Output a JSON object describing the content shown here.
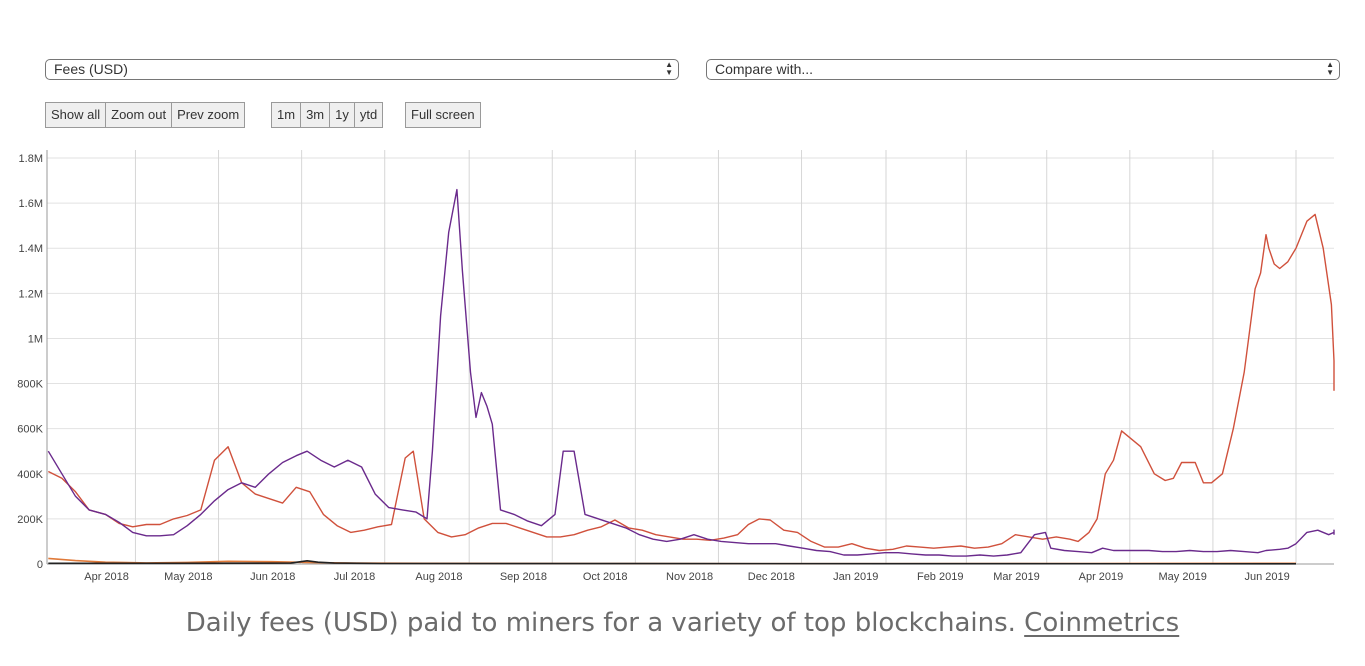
{
  "controls": {
    "metric_select": "Fees (USD)",
    "compare_select": "Compare with...",
    "zoom_buttons": [
      "Show all",
      "Zoom out",
      "Prev zoom"
    ],
    "range_buttons": [
      "1m",
      "3m",
      "1y",
      "ytd"
    ],
    "fullscreen_button": "Full screen"
  },
  "caption": {
    "text": "Daily fees (USD) paid to miners for a variety of top blockchains.",
    "link": "Coinmetrics"
  },
  "chart_data": {
    "type": "line",
    "x_ticks": [
      "Apr 2018",
      "May 2018",
      "Jun 2018",
      "Jul 2018",
      "Aug 2018",
      "Sep 2018",
      "Oct 2018",
      "Nov 2018",
      "Dec 2018",
      "Jan 2019",
      "Feb 2019",
      "Mar 2019",
      "Apr 2019",
      "May 2019",
      "Jun 2019"
    ],
    "xlim": [
      "2018-03-15",
      "2019-06-16"
    ],
    "y_ticks": [
      "0",
      "200K",
      "400K",
      "600K",
      "800K",
      "1M",
      "1.2M",
      "1.4M",
      "1.6M",
      "1.8M"
    ],
    "ylim": [
      0,
      1800000
    ],
    "grid": true,
    "colors": {
      "red": "#d0513c",
      "purple": "#6a2a8c",
      "orange": "#e07a3a",
      "black": "#222222"
    },
    "series": [
      {
        "color": "red",
        "points": [
          [
            "2018-03-15",
            410000
          ],
          [
            "2018-03-20",
            380000
          ],
          [
            "2018-03-25",
            320000
          ],
          [
            "2018-03-30",
            240000
          ],
          [
            "2018-04-05",
            220000
          ],
          [
            "2018-04-10",
            180000
          ],
          [
            "2018-04-15",
            165000
          ],
          [
            "2018-04-20",
            175000
          ],
          [
            "2018-04-25",
            175000
          ],
          [
            "2018-04-30",
            200000
          ],
          [
            "2018-05-05",
            215000
          ],
          [
            "2018-05-10",
            240000
          ],
          [
            "2018-05-15",
            460000
          ],
          [
            "2018-05-20",
            520000
          ],
          [
            "2018-05-25",
            360000
          ],
          [
            "2018-05-30",
            310000
          ],
          [
            "2018-06-04",
            290000
          ],
          [
            "2018-06-09",
            270000
          ],
          [
            "2018-06-14",
            340000
          ],
          [
            "2018-06-19",
            320000
          ],
          [
            "2018-06-24",
            220000
          ],
          [
            "2018-06-29",
            170000
          ],
          [
            "2018-07-04",
            140000
          ],
          [
            "2018-07-09",
            150000
          ],
          [
            "2018-07-14",
            165000
          ],
          [
            "2018-07-19",
            175000
          ],
          [
            "2018-07-24",
            470000
          ],
          [
            "2018-07-27",
            500000
          ],
          [
            "2018-07-31",
            200000
          ],
          [
            "2018-08-05",
            140000
          ],
          [
            "2018-08-10",
            120000
          ],
          [
            "2018-08-15",
            130000
          ],
          [
            "2018-08-20",
            160000
          ],
          [
            "2018-08-25",
            180000
          ],
          [
            "2018-08-30",
            180000
          ],
          [
            "2018-09-04",
            160000
          ],
          [
            "2018-09-09",
            140000
          ],
          [
            "2018-09-14",
            120000
          ],
          [
            "2018-09-19",
            120000
          ],
          [
            "2018-09-24",
            130000
          ],
          [
            "2018-09-29",
            150000
          ],
          [
            "2018-10-04",
            165000
          ],
          [
            "2018-10-09",
            195000
          ],
          [
            "2018-10-14",
            160000
          ],
          [
            "2018-10-19",
            150000
          ],
          [
            "2018-10-24",
            130000
          ],
          [
            "2018-10-29",
            120000
          ],
          [
            "2018-11-03",
            110000
          ],
          [
            "2018-11-08",
            110000
          ],
          [
            "2018-11-13",
            105000
          ],
          [
            "2018-11-18",
            115000
          ],
          [
            "2018-11-23",
            130000
          ],
          [
            "2018-11-27",
            175000
          ],
          [
            "2018-12-01",
            200000
          ],
          [
            "2018-12-05",
            195000
          ],
          [
            "2018-12-10",
            150000
          ],
          [
            "2018-12-15",
            140000
          ],
          [
            "2018-12-20",
            100000
          ],
          [
            "2018-12-25",
            75000
          ],
          [
            "2018-12-30",
            75000
          ],
          [
            "2019-01-04",
            90000
          ],
          [
            "2019-01-09",
            70000
          ],
          [
            "2019-01-14",
            60000
          ],
          [
            "2019-01-19",
            65000
          ],
          [
            "2019-01-24",
            80000
          ],
          [
            "2019-01-29",
            75000
          ],
          [
            "2019-02-03",
            70000
          ],
          [
            "2019-02-08",
            75000
          ],
          [
            "2019-02-13",
            80000
          ],
          [
            "2019-02-18",
            70000
          ],
          [
            "2019-02-23",
            75000
          ],
          [
            "2019-02-28",
            90000
          ],
          [
            "2019-03-05",
            130000
          ],
          [
            "2019-03-10",
            120000
          ],
          [
            "2019-03-15",
            110000
          ],
          [
            "2019-03-20",
            120000
          ],
          [
            "2019-03-25",
            110000
          ],
          [
            "2019-03-28",
            100000
          ],
          [
            "2019-04-01",
            140000
          ],
          [
            "2019-04-04",
            200000
          ],
          [
            "2019-04-07",
            400000
          ],
          [
            "2019-04-10",
            460000
          ],
          [
            "2019-04-13",
            590000
          ],
          [
            "2019-04-16",
            560000
          ],
          [
            "2019-04-20",
            520000
          ],
          [
            "2019-04-25",
            400000
          ],
          [
            "2019-04-29",
            370000
          ],
          [
            "2019-05-02",
            380000
          ],
          [
            "2019-05-05",
            450000
          ],
          [
            "2019-05-10",
            450000
          ],
          [
            "2019-05-13",
            360000
          ],
          [
            "2019-05-16",
            360000
          ],
          [
            "2019-05-20",
            400000
          ],
          [
            "2019-05-24",
            600000
          ],
          [
            "2019-05-28",
            850000
          ],
          [
            "2019-06-01",
            1220000
          ],
          [
            "2019-06-03",
            1290000
          ],
          [
            "2019-06-05",
            1460000
          ],
          [
            "2019-06-06",
            1400000
          ],
          [
            "2019-06-08",
            1330000
          ],
          [
            "2019-06-10",
            1310000
          ],
          [
            "2019-06-13",
            1340000
          ],
          [
            "2019-06-16",
            1400000
          ]
        ],
        "tail": [
          [
            "2019-06-20",
            1520000
          ],
          [
            "2019-06-23",
            1550000
          ],
          [
            "2019-06-26",
            1400000
          ],
          [
            "2019-06-29",
            1150000
          ],
          [
            "2019-07-02",
            900000
          ],
          [
            "2019-07-04",
            780000
          ],
          [
            "2019-07-06",
            770000
          ],
          [
            "2019-07-08",
            790000
          ]
        ]
      },
      {
        "color": "purple",
        "points": [
          [
            "2018-03-15",
            500000
          ],
          [
            "2018-03-20",
            400000
          ],
          [
            "2018-03-25",
            300000
          ],
          [
            "2018-03-30",
            240000
          ],
          [
            "2018-04-05",
            220000
          ],
          [
            "2018-04-10",
            185000
          ],
          [
            "2018-04-15",
            140000
          ],
          [
            "2018-04-20",
            125000
          ],
          [
            "2018-04-25",
            125000
          ],
          [
            "2018-04-30",
            130000
          ],
          [
            "2018-05-05",
            170000
          ],
          [
            "2018-05-10",
            220000
          ],
          [
            "2018-05-15",
            280000
          ],
          [
            "2018-05-20",
            330000
          ],
          [
            "2018-05-25",
            360000
          ],
          [
            "2018-05-30",
            340000
          ],
          [
            "2018-06-04",
            400000
          ],
          [
            "2018-06-09",
            450000
          ],
          [
            "2018-06-14",
            480000
          ],
          [
            "2018-06-18",
            500000
          ],
          [
            "2018-06-23",
            460000
          ],
          [
            "2018-06-28",
            430000
          ],
          [
            "2018-07-03",
            460000
          ],
          [
            "2018-07-08",
            430000
          ],
          [
            "2018-07-13",
            310000
          ],
          [
            "2018-07-18",
            250000
          ],
          [
            "2018-07-23",
            240000
          ],
          [
            "2018-07-28",
            230000
          ],
          [
            "2018-08-01",
            200000
          ],
          [
            "2018-08-03",
            500000
          ],
          [
            "2018-08-06",
            1100000
          ],
          [
            "2018-08-09",
            1470000
          ],
          [
            "2018-08-12",
            1660000
          ],
          [
            "2018-08-14",
            1300000
          ],
          [
            "2018-08-17",
            850000
          ],
          [
            "2018-08-19",
            650000
          ],
          [
            "2018-08-21",
            760000
          ],
          [
            "2018-08-23",
            700000
          ],
          [
            "2018-08-25",
            620000
          ],
          [
            "2018-08-28",
            240000
          ],
          [
            "2018-09-02",
            220000
          ],
          [
            "2018-09-07",
            190000
          ],
          [
            "2018-09-12",
            170000
          ],
          [
            "2018-09-17",
            220000
          ],
          [
            "2018-09-20",
            500000
          ],
          [
            "2018-09-24",
            500000
          ],
          [
            "2018-09-28",
            220000
          ],
          [
            "2018-10-03",
            200000
          ],
          [
            "2018-10-08",
            180000
          ],
          [
            "2018-10-13",
            160000
          ],
          [
            "2018-10-18",
            130000
          ],
          [
            "2018-10-23",
            110000
          ],
          [
            "2018-10-28",
            100000
          ],
          [
            "2018-11-02",
            110000
          ],
          [
            "2018-11-07",
            130000
          ],
          [
            "2018-11-12",
            110000
          ],
          [
            "2018-11-17",
            100000
          ],
          [
            "2018-11-22",
            95000
          ],
          [
            "2018-11-27",
            90000
          ],
          [
            "2018-12-02",
            90000
          ],
          [
            "2018-12-07",
            90000
          ],
          [
            "2018-12-12",
            80000
          ],
          [
            "2018-12-17",
            70000
          ],
          [
            "2018-12-22",
            60000
          ],
          [
            "2018-12-27",
            55000
          ],
          [
            "2019-01-01",
            40000
          ],
          [
            "2019-01-06",
            40000
          ],
          [
            "2019-01-11",
            45000
          ],
          [
            "2019-01-16",
            50000
          ],
          [
            "2019-01-21",
            50000
          ],
          [
            "2019-01-26",
            45000
          ],
          [
            "2019-01-31",
            40000
          ],
          [
            "2019-02-05",
            40000
          ],
          [
            "2019-02-10",
            35000
          ],
          [
            "2019-02-15",
            35000
          ],
          [
            "2019-02-20",
            40000
          ],
          [
            "2019-02-25",
            35000
          ],
          [
            "2019-03-02",
            40000
          ],
          [
            "2019-03-07",
            50000
          ],
          [
            "2019-03-12",
            130000
          ],
          [
            "2019-03-16",
            140000
          ],
          [
            "2019-03-18",
            70000
          ],
          [
            "2019-03-23",
            60000
          ],
          [
            "2019-03-28",
            55000
          ],
          [
            "2019-04-02",
            50000
          ],
          [
            "2019-04-06",
            70000
          ],
          [
            "2019-04-10",
            60000
          ],
          [
            "2019-04-14",
            60000
          ],
          [
            "2019-04-18",
            60000
          ],
          [
            "2019-04-23",
            60000
          ],
          [
            "2019-04-28",
            55000
          ],
          [
            "2019-05-03",
            55000
          ],
          [
            "2019-05-08",
            60000
          ],
          [
            "2019-05-13",
            55000
          ],
          [
            "2019-05-18",
            55000
          ],
          [
            "2019-05-23",
            60000
          ],
          [
            "2019-05-28",
            55000
          ],
          [
            "2019-06-02",
            50000
          ],
          [
            "2019-06-05",
            60000
          ],
          [
            "2019-06-10",
            65000
          ],
          [
            "2019-06-13",
            70000
          ],
          [
            "2019-06-16",
            90000
          ]
        ],
        "tail": [
          [
            "2019-06-20",
            140000
          ],
          [
            "2019-06-24",
            150000
          ],
          [
            "2019-06-28",
            130000
          ],
          [
            "2019-07-02",
            140000
          ],
          [
            "2019-07-06",
            150000
          ],
          [
            "2019-07-10",
            130000
          ],
          [
            "2019-07-14",
            130000
          ]
        ]
      },
      {
        "color": "orange",
        "points": [
          [
            "2018-03-15",
            25000
          ],
          [
            "2018-03-25",
            15000
          ],
          [
            "2018-04-05",
            8000
          ],
          [
            "2018-04-20",
            5000
          ],
          [
            "2018-05-05",
            7000
          ],
          [
            "2018-05-20",
            12000
          ],
          [
            "2018-06-05",
            10000
          ],
          [
            "2018-06-20",
            6000
          ],
          [
            "2018-07-05",
            4000
          ],
          [
            "2018-08-01",
            3000
          ],
          [
            "2018-10-01",
            2000
          ],
          [
            "2019-01-01",
            1500
          ],
          [
            "2019-04-01",
            2000
          ],
          [
            "2019-06-16",
            3000
          ]
        ]
      },
      {
        "color": "black",
        "points": [
          [
            "2018-03-15",
            3000
          ],
          [
            "2018-05-01",
            3000
          ],
          [
            "2018-06-12",
            4000
          ],
          [
            "2018-06-18",
            14000
          ],
          [
            "2018-06-22",
            8000
          ],
          [
            "2018-06-28",
            4000
          ],
          [
            "2018-07-15",
            2000
          ],
          [
            "2019-06-16",
            1000
          ]
        ]
      }
    ]
  }
}
